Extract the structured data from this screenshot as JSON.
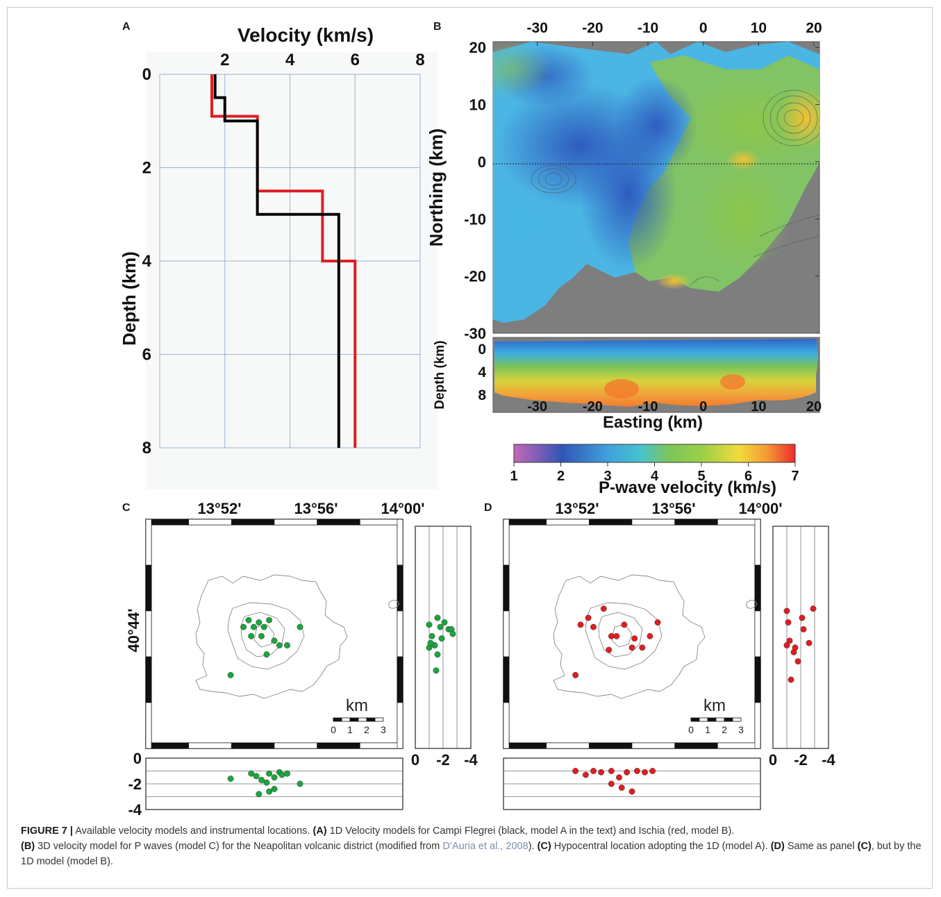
{
  "panels": {
    "a": {
      "letter": "A",
      "chart_data": {
        "type": "line",
        "xlabel": "Velocity (km/s)",
        "ylabel": "Depth (km)",
        "xlim": [
          0,
          8
        ],
        "ylim": [
          0,
          8
        ],
        "x_ticks": [
          "2",
          "4",
          "6",
          "8"
        ],
        "y_ticks": [
          "0",
          "2",
          "4",
          "6",
          "8"
        ],
        "grid": true,
        "series": [
          {
            "color": "#e11d22",
            "x": [
              1.6,
              1.6,
              3.0,
              3.0,
              5.0,
              5.0,
              6.0,
              6.0
            ],
            "y": [
              0,
              0.9,
              0.9,
              2.5,
              2.5,
              4.0,
              4.0,
              8.0
            ]
          },
          {
            "color": "#000000",
            "x": [
              1.7,
              1.7,
              2.0,
              2.0,
              3.0,
              3.0,
              5.5,
              5.5
            ],
            "y": [
              0,
              0.5,
              0.5,
              1.0,
              1.0,
              3.0,
              3.0,
              8.0
            ]
          }
        ]
      }
    },
    "b": {
      "letter": "B",
      "chart_data": {
        "type": "heatmap",
        "ylabel": "Northing (km)",
        "xlabel": "Easting (km)",
        "xlim": [
          -38,
          21
        ],
        "ylim": [
          -30,
          21
        ],
        "x_ticks": [
          "-30",
          "-20",
          "-10",
          "0",
          "10",
          "20"
        ],
        "y_ticks": [
          "20",
          "10",
          "0",
          "-10",
          "-20",
          "-30"
        ],
        "section_ylabel": "Depth (km)",
        "section_ticks": [
          "0",
          "4",
          "8"
        ],
        "colorbar_label": "P-wave velocity (km/s)",
        "colorbar_ticks": [
          "1",
          "2",
          "3",
          "4",
          "5",
          "6",
          "7"
        ],
        "colorbar_range": [
          1,
          7
        ]
      }
    },
    "c": {
      "letter": "C",
      "lon_ticks": [
        "13°52'",
        "13°56'",
        "14°00'"
      ],
      "lat_tick": "40°44'",
      "scale_label": "km",
      "scale_ticks": [
        "0",
        "1",
        "2",
        "3"
      ],
      "side_ticks": [
        "0",
        "-2",
        "-4"
      ],
      "bottom_ticks": [
        "0",
        "-2",
        "-4"
      ],
      "dot_color": "#1aa63c",
      "chart_data": {
        "type": "scatter",
        "series": [
          {
            "name": "map",
            "x": [
              0.38,
              0.4,
              0.42,
              0.44,
              0.46,
              0.48,
              0.41,
              0.45,
              0.5,
              0.52,
              0.55,
              0.6,
              0.47,
              0.33
            ],
            "y": [
              0.47,
              0.44,
              0.47,
              0.45,
              0.47,
              0.44,
              0.51,
              0.51,
              0.53,
              0.55,
              0.55,
              0.47,
              0.59,
              0.68
            ]
          },
          {
            "name": "depth-ns",
            "x": [
              -1.0,
              -1.2,
              -1.4,
              -1.6,
              -1.8,
              -2.1,
              -2.4,
              -2.6,
              -2.7,
              -1.0,
              -1.1,
              -1.5,
              -1.9,
              -1.6
            ],
            "y": [
              0.46,
              0.51,
              0.55,
              0.59,
              0.47,
              0.45,
              0.48,
              0.48,
              0.5,
              0.56,
              0.54,
              0.66,
              0.52,
              0.43
            ]
          },
          {
            "name": "depth-ew",
            "x": [
              0.33,
              0.41,
              0.43,
              0.45,
              0.47,
              0.48,
              0.5,
              0.52,
              0.53,
              0.55,
              0.44,
              0.48,
              0.5,
              0.6
            ],
            "y": [
              -1.6,
              -1.2,
              -1.4,
              -1.7,
              -1.9,
              -1.2,
              -1.5,
              -1.1,
              -1.3,
              -1.2,
              -2.8,
              -2.6,
              -2.4,
              -2.0
            ]
          }
        ]
      }
    },
    "d": {
      "letter": "D",
      "lon_ticks": [
        "13°52'",
        "13°56'",
        "14°00'"
      ],
      "scale_label": "km",
      "scale_ticks": [
        "0",
        "1",
        "2",
        "3"
      ],
      "side_ticks": [
        "0",
        "-2",
        "-4"
      ],
      "dot_color": "#e11d22",
      "chart_data": {
        "type": "scatter",
        "series": [
          {
            "name": "map",
            "x": [
              0.3,
              0.33,
              0.35,
              0.39,
              0.42,
              0.44,
              0.47,
              0.5,
              0.51,
              0.54,
              0.57,
              0.41,
              0.28,
              0.6
            ],
            "y": [
              0.46,
              0.43,
              0.47,
              0.39,
              0.51,
              0.51,
              0.46,
              0.56,
              0.52,
              0.56,
              0.51,
              0.57,
              0.68,
              0.45
            ]
          },
          {
            "name": "depth-ns",
            "x": [
              -1.0,
              -1.1,
              -1.2,
              -1.5,
              -1.8,
              -2.2,
              -2.6,
              -2.9,
              -1.0,
              -1.3,
              -2.1,
              -1.6
            ],
            "y": [
              0.4,
              0.45,
              0.53,
              0.58,
              0.62,
              0.48,
              0.54,
              0.39,
              0.55,
              0.7,
              0.43,
              0.56
            ]
          },
          {
            "name": "depth-ew",
            "x": [
              0.28,
              0.32,
              0.35,
              0.38,
              0.42,
              0.45,
              0.48,
              0.52,
              0.55,
              0.58,
              0.42,
              0.46,
              0.5
            ],
            "y": [
              -1.0,
              -1.3,
              -1.0,
              -1.1,
              -1.0,
              -1.5,
              -1.1,
              -1.0,
              -1.1,
              -1.0,
              -2.0,
              -2.3,
              -2.6
            ]
          }
        ]
      }
    }
  },
  "caption": {
    "figure": "FIGURE 7 |",
    "t1": " Available velocity models and instrumental locations. ",
    "la": "(A)",
    "t2": " 1D Velocity models for Campi Flegrei (black, model A in the text) and Ischia (red, model B). ",
    "lb": "(B)",
    "t3": " 3D velocity model for P waves (model C) for the Neapolitan volcanic district (modified from ",
    "ref": "D’Auria et al., 2008",
    "t4": "). ",
    "lc": "(C)",
    "t5": " Hypocentral location adopting the 1D (model A). ",
    "ld": "(D)",
    "t6": " Same as panel ",
    "lc2": "(C)",
    "t7": ", but by the 1D model (model B)."
  }
}
